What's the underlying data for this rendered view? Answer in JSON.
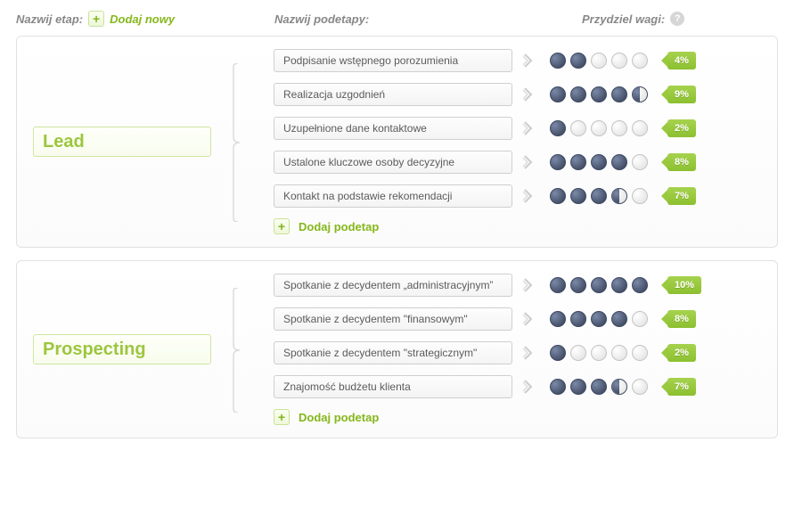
{
  "headers": {
    "stage_label": "Nazwij etap:",
    "add_new_label": "Dodaj nowy",
    "substage_label": "Nazwij podetapy:",
    "weight_label": "Przydziel wagi:"
  },
  "add_substage_label": "Dodaj podetap",
  "colors": {
    "accent_green": "#8cc030",
    "dot_fill": "#4a5570",
    "dot_empty": "#e8e8e8",
    "panel_border": "#e1e1e1"
  },
  "stages": [
    {
      "name": "Lead",
      "substages": [
        {
          "label": "Podpisanie wstępnego porozumienia",
          "rating": 2,
          "half": false,
          "weight": "4%"
        },
        {
          "label": "Realizacja uzgodnień",
          "rating": 4,
          "half": true,
          "weight": "9%"
        },
        {
          "label": "Uzupełnione dane kontaktowe",
          "rating": 1,
          "half": false,
          "weight": "2%"
        },
        {
          "label": "Ustalone kluczowe osoby decyzyjne",
          "rating": 4,
          "half": false,
          "weight": "8%"
        },
        {
          "label": "Kontakt na podstawie rekomendacji",
          "rating": 3,
          "half": true,
          "weight": "7%"
        }
      ]
    },
    {
      "name": "Prospecting",
      "substages": [
        {
          "label": "Spotkanie z decydentem „administracyjnym”",
          "rating": 5,
          "half": false,
          "weight": "10%"
        },
        {
          "label": "Spotkanie z decydentem \"finansowym\"",
          "rating": 4,
          "half": false,
          "weight": "8%"
        },
        {
          "label": "Spotkanie z decydentem \"strategicznym\"",
          "rating": 1,
          "half": false,
          "weight": "2%"
        },
        {
          "label": "Znajomość budżetu klienta",
          "rating": 3,
          "half": true,
          "weight": "7%"
        }
      ]
    }
  ]
}
